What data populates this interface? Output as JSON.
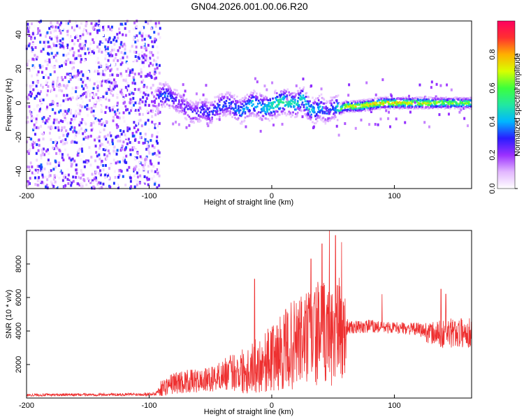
{
  "title": "GN04.2026.001.00.06.R20",
  "chart_data": [
    {
      "type": "heatmap",
      "xlabel": "Height of straight line (km)",
      "ylabel": "Frequency (Hz)",
      "xlim": [
        -200,
        163
      ],
      "ylim": [
        -50,
        48
      ],
      "xticks": [
        -200,
        -100,
        0,
        100
      ],
      "yticks": [
        -40,
        -20,
        0,
        20,
        40
      ],
      "colorbar": {
        "label": "Normalized spectral amplitude",
        "range": [
          0,
          1
        ],
        "ticks": [
          0.0,
          0.2,
          0.4,
          0.6,
          0.8
        ],
        "tick_labels": [
          "0.0",
          "0.2",
          "0.4",
          "0.6",
          "0.8"
        ],
        "colors": [
          "#ffffff",
          "#e2b7ff",
          "#9b30ff",
          "#2a1cff",
          "#00b7ff",
          "#22e8a0",
          "#3cff3c",
          "#d8ff00",
          "#ffb000",
          "#ff3030",
          "#ff0060"
        ]
      },
      "noise_region": {
        "x_range": [
          -200,
          -97
        ],
        "freq_range": [
          -50,
          48
        ]
      },
      "signal_track": {
        "x": [
          -97,
          -92,
          -88,
          -84,
          -80,
          -75,
          -70,
          -65,
          -60,
          -55,
          -50,
          -45,
          -40,
          -35,
          -30,
          -25,
          -20,
          -15,
          -10,
          -5,
          0,
          5,
          10,
          15,
          20,
          25,
          30,
          35,
          40,
          45,
          48,
          52,
          55,
          60,
          70,
          80,
          90,
          100,
          110,
          120,
          130,
          140,
          150,
          163
        ],
        "freq": [
          0,
          3,
          5,
          4,
          2,
          0,
          -3,
          -6,
          -5,
          -4,
          -6,
          -3,
          -1,
          0,
          -3,
          -5,
          -2,
          0,
          -2,
          -3,
          -2,
          0,
          1,
          0,
          -1,
          3,
          -3,
          -5,
          -2,
          -6,
          -4,
          -2,
          -4,
          -2,
          -2,
          -1,
          0,
          0,
          0,
          0,
          0,
          0,
          0,
          0
        ],
        "amplitude": [
          0.2,
          0.35,
          0.4,
          0.38,
          0.3,
          0.25,
          0.3,
          0.3,
          0.3,
          0.35,
          0.35,
          0.35,
          0.4,
          0.35,
          0.4,
          0.45,
          0.45,
          0.5,
          0.45,
          0.5,
          0.55,
          0.6,
          0.55,
          0.55,
          0.5,
          0.5,
          0.5,
          0.45,
          0.45,
          0.35,
          0.35,
          0.45,
          0.6,
          0.8,
          0.85,
          0.85,
          0.85,
          0.85,
          0.8,
          0.8,
          0.75,
          0.75,
          0.7,
          0.7
        ]
      }
    },
    {
      "type": "line",
      "xlabel": "Height of straight line (km)",
      "ylabel": "SNR (10 * v/v)",
      "xlim": [
        -200,
        163
      ],
      "ylim": [
        0,
        10000
      ],
      "xticks": [
        -200,
        -100,
        0,
        100
      ],
      "yticks": [
        2000,
        4000,
        6000,
        8000
      ],
      "series": [
        {
          "name": "SNR",
          "color": "#ee3030",
          "x": [
            -200,
            -150,
            -110,
            -95,
            -90,
            -80,
            -70,
            -60,
            -50,
            -40,
            -30,
            -20,
            -10,
            0,
            10,
            20,
            30,
            40,
            50,
            55,
            60,
            61,
            63,
            70,
            80,
            90,
            100,
            110,
            120,
            130,
            140,
            150,
            163
          ],
          "y": [
            180,
            200,
            220,
            250,
            600,
            900,
            1000,
            1000,
            1100,
            1400,
            1600,
            1700,
            2000,
            2400,
            2800,
            3300,
            3600,
            3900,
            3800,
            4000,
            3700,
            4300,
            4200,
            4200,
            4300,
            4200,
            4200,
            4150,
            4100,
            3850,
            3800,
            3900,
            3900
          ],
          "spread": [
            80,
            80,
            90,
            120,
            500,
            650,
            700,
            700,
            750,
            900,
            1200,
            1500,
            1700,
            2000,
            2400,
            2800,
            3000,
            3200,
            3100,
            3200,
            2800,
            500,
            400,
            400,
            400,
            350,
            350,
            350,
            400,
            700,
            900,
            900,
            900
          ],
          "peaks": [
            {
              "x": -14,
              "y": 7100
            },
            {
              "x": 32,
              "y": 8300
            },
            {
              "x": 41,
              "y": 9200
            },
            {
              "x": 47,
              "y": 10000
            },
            {
              "x": 52,
              "y": 9700
            },
            {
              "x": 57,
              "y": 9300
            },
            {
              "x": 90,
              "y": 6200
            },
            {
              "x": 138,
              "y": 6500
            },
            {
              "x": 142,
              "y": 6200
            }
          ]
        }
      ]
    }
  ]
}
